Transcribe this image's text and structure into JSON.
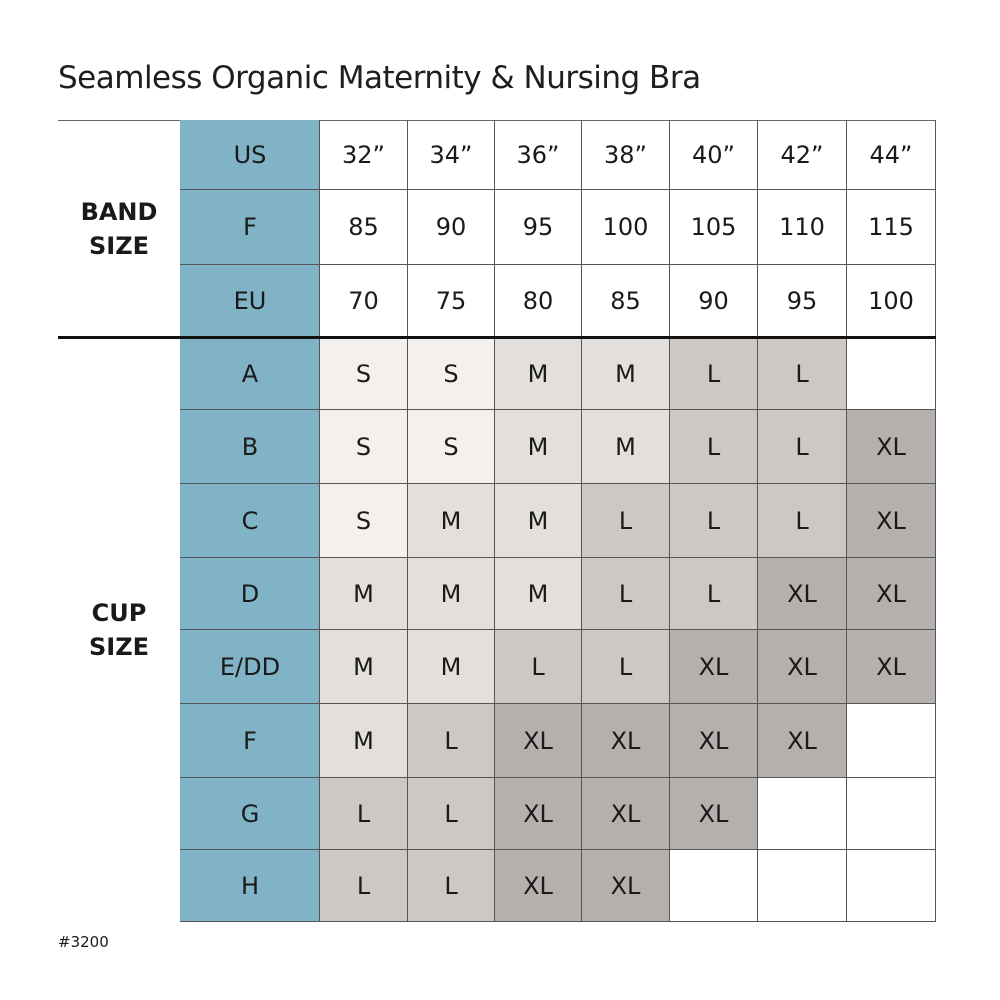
{
  "title": "Seamless Organic Maternity & Nursing Bra",
  "band_label": [
    "BAND",
    "SIZE"
  ],
  "cup_label": [
    "CUP",
    "SIZE"
  ],
  "band_rows": [
    {
      "label": "US",
      "values": [
        "32”",
        "34”",
        "36”",
        "38”",
        "40”",
        "42”",
        "44”"
      ]
    },
    {
      "label": "F",
      "values": [
        "85",
        "90",
        "95",
        "100",
        "105",
        "110",
        "115"
      ]
    },
    {
      "label": "EU",
      "values": [
        "70",
        "75",
        "80",
        "85",
        "90",
        "95",
        "100"
      ]
    }
  ],
  "cup_rows": [
    {
      "label": "A",
      "values": [
        "S",
        "S",
        "M",
        "M",
        "L",
        "L",
        ""
      ]
    },
    {
      "label": "B",
      "values": [
        "S",
        "S",
        "M",
        "M",
        "L",
        "L",
        "XL"
      ]
    },
    {
      "label": "C",
      "values": [
        "S",
        "M",
        "M",
        "L",
        "L",
        "L",
        "XL"
      ]
    },
    {
      "label": "D",
      "values": [
        "M",
        "M",
        "M",
        "L",
        "L",
        "XL",
        "XL"
      ]
    },
    {
      "label": "E/DD",
      "values": [
        "M",
        "M",
        "L",
        "L",
        "XL",
        "XL",
        "XL"
      ]
    },
    {
      "label": "F",
      "values": [
        "M",
        "L",
        "XL",
        "XL",
        "XL",
        "XL",
        ""
      ]
    },
    {
      "label": "G",
      "values": [
        "L",
        "L",
        "XL",
        "XL",
        "XL",
        "",
        ""
      ]
    },
    {
      "label": "H",
      "values": [
        "L",
        "L",
        "XL",
        "XL",
        "",
        "",
        ""
      ]
    }
  ],
  "size_colors": {
    "S": "#f3f0ee",
    "M": "#e3dfdc",
    "L": "#cdc8c4",
    "XL": "#b5b0ad",
    "": "#ffffff"
  },
  "header_color": "#80b3c6",
  "footer": "#3200"
}
